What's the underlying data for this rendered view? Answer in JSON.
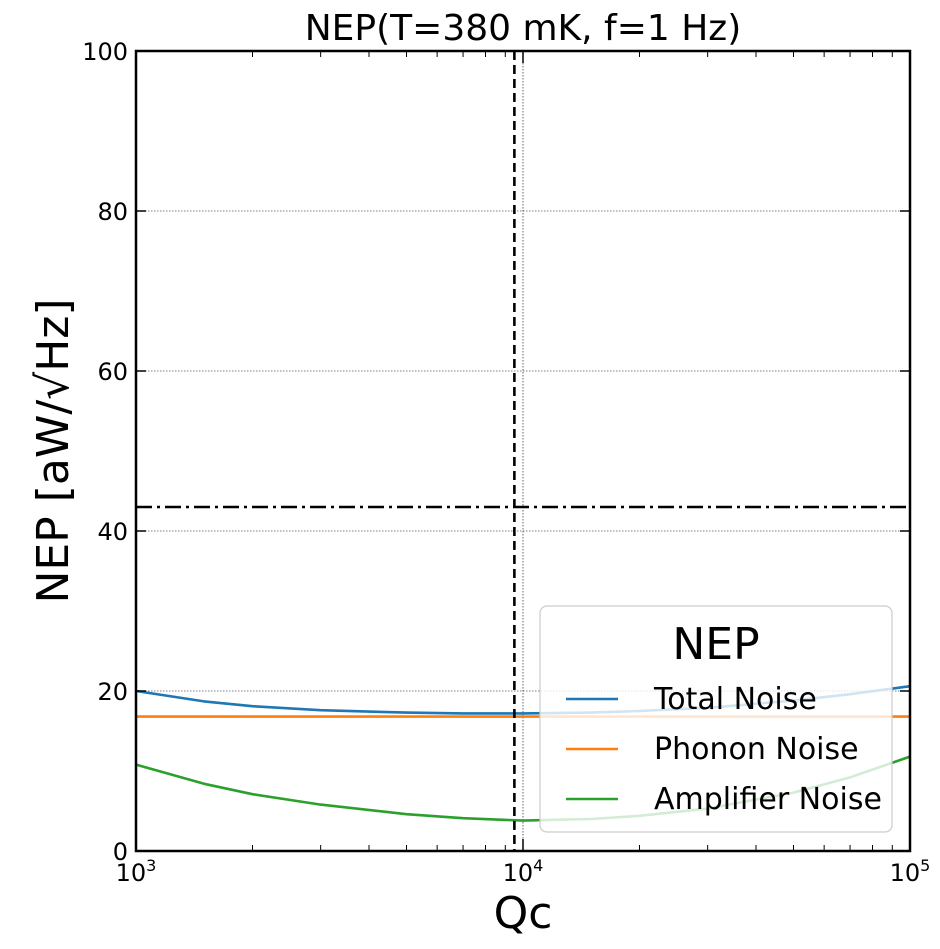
{
  "chart_data": {
    "type": "line",
    "title": "NEP(T=380 mK, f=1 Hz)",
    "xlabel": "Qc",
    "ylabel": "NEP [aW/√Hz]",
    "xscale": "log",
    "xlim": [
      1000,
      100000
    ],
    "ylim": [
      0,
      100
    ],
    "x_ticks": [
      {
        "value": 1000,
        "base": "10",
        "exp": "3"
      },
      {
        "value": 10000,
        "base": "10",
        "exp": "4"
      },
      {
        "value": 100000,
        "base": "10",
        "exp": "5"
      }
    ],
    "y_ticks": [
      {
        "value": 0,
        "label": "0"
      },
      {
        "value": 20,
        "label": "20"
      },
      {
        "value": 40,
        "label": "40"
      },
      {
        "value": 60,
        "label": "60"
      },
      {
        "value": 80,
        "label": "80"
      },
      {
        "value": 100,
        "label": "100"
      }
    ],
    "grid": true,
    "legend": {
      "title": "NEP",
      "placement": "lower-right"
    },
    "series": [
      {
        "name": "Total Noise",
        "color": "#1f77b4",
        "x": [
          1000,
          1500,
          2000,
          3000,
          5000,
          7000,
          10000,
          15000,
          20000,
          30000,
          50000,
          70000,
          100000
        ],
        "y": [
          20.0,
          18.7,
          18.1,
          17.6,
          17.3,
          17.2,
          17.2,
          17.3,
          17.5,
          17.9,
          18.8,
          19.6,
          20.6
        ]
      },
      {
        "name": "Phonon Noise",
        "color": "#ff7f0e",
        "x": [
          1000,
          100000
        ],
        "y": [
          16.8,
          16.8
        ]
      },
      {
        "name": "Amplifier Noise",
        "color": "#2ca02c",
        "x": [
          1000,
          1500,
          2000,
          3000,
          5000,
          7000,
          10000,
          15000,
          20000,
          30000,
          50000,
          70000,
          100000
        ],
        "y": [
          10.8,
          8.4,
          7.1,
          5.8,
          4.6,
          4.1,
          3.8,
          4.0,
          4.4,
          5.3,
          7.3,
          9.2,
          11.8
        ]
      }
    ],
    "reference_lines": [
      {
        "orientation": "vertical",
        "value": 9500,
        "style": "dashed",
        "color": "#000000"
      },
      {
        "orientation": "horizontal",
        "value": 43,
        "style": "dashdot",
        "color": "#000000"
      }
    ]
  }
}
